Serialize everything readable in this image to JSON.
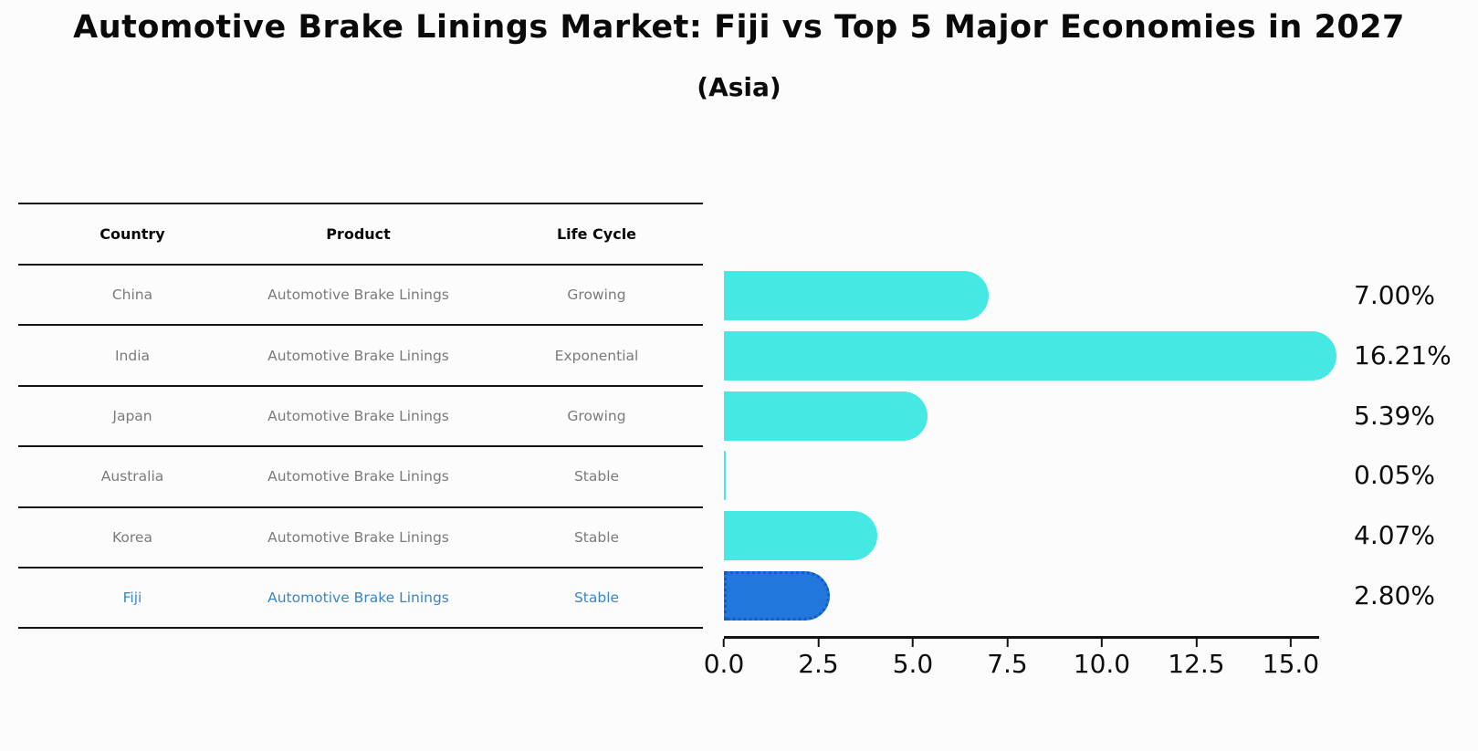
{
  "title": "Automotive Brake Linings Market: Fiji vs Top 5 Major Economies in 2027",
  "subtitle": "(Asia)",
  "table": {
    "headers": [
      "Country",
      "Product",
      "Life Cycle"
    ],
    "rows": [
      {
        "country": "China",
        "product": "Automotive Brake Linings",
        "life_cycle": "Growing",
        "highlight": false
      },
      {
        "country": "India",
        "product": "Automotive Brake Linings",
        "life_cycle": "Exponential",
        "highlight": false
      },
      {
        "country": "Japan",
        "product": "Automotive Brake Linings",
        "life_cycle": "Growing",
        "highlight": false
      },
      {
        "country": "Australia",
        "product": "Automotive Brake Linings",
        "life_cycle": "Stable",
        "highlight": false
      },
      {
        "country": "Korea",
        "product": "Automotive Brake Linings",
        "life_cycle": "Stable",
        "highlight": false
      },
      {
        "country": "Fiji",
        "product": "Automotive Brake Linings",
        "life_cycle": "Stable",
        "highlight": true
      }
    ]
  },
  "chart_data": {
    "type": "bar",
    "orientation": "horizontal",
    "title": "Automotive Brake Linings Market: Fiji vs Top 5 Major Economies in 2027 (Asia)",
    "categories": [
      "China",
      "India",
      "Japan",
      "Australia",
      "Korea",
      "Fiji"
    ],
    "values": [
      7.0,
      16.21,
      5.39,
      0.05,
      4.07,
      2.8
    ],
    "value_labels": [
      "7.00%",
      "16.21%",
      "5.39%",
      "0.05%",
      "4.07%",
      "2.80%"
    ],
    "x_ticks": [
      0.0,
      2.5,
      5.0,
      7.5,
      10.0,
      12.5,
      15.0
    ],
    "x_tick_labels": [
      "0.0",
      "2.5",
      "5.0",
      "7.5",
      "10.0",
      "12.5",
      "15.0"
    ],
    "xlim": [
      0,
      15.75
    ],
    "grid": false,
    "legend": "none",
    "bar_color": "#46e8e4",
    "highlight_color": "#2277dd",
    "highlight_border_color": "#0f5ccc",
    "highlight_index": 5
  },
  "colors": {
    "background": "#fcfcfc",
    "table_line": "#141414",
    "table_text": "#7b7b7b",
    "highlight_text": "#3a86c8",
    "axis_text": "#0d0d0d"
  }
}
